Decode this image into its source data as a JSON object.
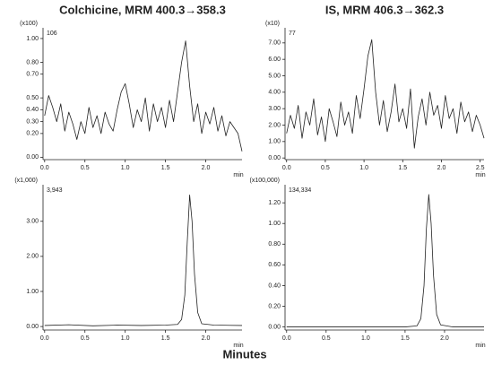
{
  "chart_data": [
    {
      "type": "line",
      "title": "Colchicine, MRM 400.3→358.3",
      "multiplier": "(x100)",
      "peak_label": "106",
      "x_unit": "min",
      "x": [
        0,
        0.05,
        0.1,
        0.15,
        0.2,
        0.25,
        0.3,
        0.35,
        0.4,
        0.45,
        0.5,
        0.55,
        0.6,
        0.65,
        0.7,
        0.75,
        0.8,
        0.85,
        0.9,
        0.95,
        1.0,
        1.05,
        1.1,
        1.15,
        1.2,
        1.25,
        1.3,
        1.35,
        1.4,
        1.45,
        1.5,
        1.55,
        1.6,
        1.65,
        1.7,
        1.75,
        1.8,
        1.85,
        1.9,
        1.95,
        2.0,
        2.05,
        2.1,
        2.15,
        2.2,
        2.25,
        2.3,
        2.35,
        2.4,
        2.45
      ],
      "values": [
        0.35,
        0.52,
        0.42,
        0.3,
        0.45,
        0.22,
        0.38,
        0.28,
        0.15,
        0.3,
        0.2,
        0.42,
        0.25,
        0.35,
        0.2,
        0.38,
        0.28,
        0.22,
        0.4,
        0.55,
        0.62,
        0.45,
        0.25,
        0.4,
        0.3,
        0.5,
        0.22,
        0.45,
        0.3,
        0.42,
        0.25,
        0.48,
        0.3,
        0.55,
        0.8,
        0.98,
        0.6,
        0.3,
        0.45,
        0.2,
        0.38,
        0.28,
        0.42,
        0.22,
        0.35,
        0.18,
        0.3,
        0.25,
        0.2,
        0.05
      ],
      "color": "#222222",
      "xlim": [
        -0.02,
        2.45
      ],
      "ylim": [
        -0.02,
        1.06
      ],
      "xticks": [
        {
          "value": 0,
          "label": "0.0"
        },
        0.5,
        {
          "value": 1,
          "label": "1.0"
        },
        1.5,
        {
          "value": 2,
          "label": "2.0"
        }
      ],
      "yticks": [
        {
          "value": 0,
          "label": "0.00"
        },
        {
          "value": 0.2,
          "label": "0.20"
        },
        {
          "value": 0.3,
          "label": "0.30"
        },
        {
          "value": 0.4,
          "label": "0.40"
        },
        {
          "value": 0.5,
          "label": "0.50"
        },
        {
          "value": 0.7,
          "label": "0.70"
        },
        {
          "value": 0.8,
          "label": "0.80"
        },
        {
          "value": 1,
          "label": "1.00"
        }
      ]
    },
    {
      "type": "line",
      "title": "IS, MRM 406.3→362.3",
      "multiplier": "(x10)",
      "peak_label": "77",
      "x_unit": "min",
      "x": [
        0,
        0.05,
        0.1,
        0.15,
        0.2,
        0.25,
        0.3,
        0.35,
        0.4,
        0.45,
        0.5,
        0.55,
        0.6,
        0.65,
        0.7,
        0.75,
        0.8,
        0.85,
        0.9,
        0.95,
        1.0,
        1.05,
        1.1,
        1.15,
        1.2,
        1.25,
        1.3,
        1.35,
        1.4,
        1.45,
        1.5,
        1.55,
        1.6,
        1.65,
        1.7,
        1.75,
        1.8,
        1.85,
        1.9,
        1.95,
        2.0,
        2.05,
        2.1,
        2.15,
        2.2,
        2.25,
        2.3,
        2.35,
        2.4,
        2.45,
        2.5,
        2.55
      ],
      "values": [
        1.5,
        2.6,
        1.8,
        3.2,
        1.2,
        2.8,
        2.0,
        3.6,
        1.4,
        2.5,
        1.0,
        3.0,
        2.2,
        1.3,
        3.4,
        2.0,
        2.8,
        1.5,
        3.8,
        2.4,
        4.2,
        6.2,
        7.2,
        4.0,
        2.0,
        3.5,
        1.6,
        2.8,
        4.5,
        2.2,
        3.0,
        1.8,
        4.2,
        0.6,
        2.5,
        3.6,
        2.0,
        4.0,
        2.6,
        3.2,
        1.8,
        3.8,
        2.4,
        3.0,
        1.5,
        3.4,
        2.2,
        2.8,
        1.6,
        2.6,
        2.0,
        1.2
      ],
      "color": "#222222",
      "xlim": [
        -0.02,
        2.55
      ],
      "ylim": [
        -0.1,
        7.7
      ],
      "xticks": [
        {
          "value": 0,
          "label": "0.0"
        },
        0.5,
        {
          "value": 1,
          "label": "1.0"
        },
        1.5,
        {
          "value": 2,
          "label": "2.0"
        },
        2.5
      ],
      "yticks": [
        {
          "value": 0,
          "label": "0.00"
        },
        {
          "value": 1,
          "label": "1.00"
        },
        {
          "value": 2,
          "label": "2.00"
        },
        {
          "value": 3,
          "label": "3.00"
        },
        {
          "value": 4,
          "label": "4.00"
        },
        {
          "value": 5,
          "label": "5.00"
        },
        {
          "value": 6,
          "label": "6.00"
        },
        {
          "value": 7,
          "label": "7.00"
        }
      ]
    },
    {
      "type": "line",
      "multiplier": "(x1,000)",
      "peak_label": "3,943",
      "x_unit": "min",
      "x": [
        0,
        0.3,
        0.6,
        0.9,
        1.2,
        1.5,
        1.65,
        1.7,
        1.74,
        1.77,
        1.8,
        1.83,
        1.86,
        1.9,
        1.95,
        2.1,
        2.45
      ],
      "values": [
        0.03,
        0.05,
        0.02,
        0.04,
        0.03,
        0.04,
        0.06,
        0.2,
        0.9,
        2.4,
        3.75,
        3.0,
        1.5,
        0.4,
        0.08,
        0.04,
        0.03
      ],
      "color": "#222222",
      "xlim": [
        -0.02,
        2.45
      ],
      "ylim": [
        -0.1,
        3.94
      ],
      "xticks": [
        {
          "value": 0,
          "label": "0.0"
        },
        0.5,
        {
          "value": 1,
          "label": "1.0"
        },
        1.5,
        {
          "value": 2,
          "label": "2.0"
        }
      ],
      "yticks": [
        {
          "value": 0,
          "label": "0.00"
        },
        {
          "value": 1,
          "label": "1.00"
        },
        {
          "value": 2,
          "label": "2.00"
        },
        {
          "value": 3,
          "label": "3.00"
        }
      ]
    },
    {
      "type": "line",
      "multiplier": "(x100,000)",
      "peak_label": "134,334",
      "x_unit": "min",
      "x": [
        0,
        0.3,
        0.6,
        0.9,
        1.2,
        1.5,
        1.65,
        1.7,
        1.74,
        1.77,
        1.8,
        1.83,
        1.86,
        1.9,
        1.95,
        2.1,
        2.5
      ],
      "values": [
        0,
        0,
        0,
        0,
        0,
        0,
        0.01,
        0.08,
        0.4,
        0.95,
        1.28,
        1.0,
        0.5,
        0.12,
        0.02,
        0,
        0
      ],
      "color": "#222222",
      "xlim": [
        -0.02,
        2.5
      ],
      "ylim": [
        -0.03,
        1.34
      ],
      "xticks": [
        {
          "value": 0,
          "label": "0.0"
        },
        0.5,
        {
          "value": 1,
          "label": "1.0"
        },
        1.5,
        {
          "value": 2,
          "label": "2.0"
        }
      ],
      "yticks": [
        {
          "value": 0,
          "label": "0.00"
        },
        {
          "value": 0.2,
          "label": "0.20"
        },
        {
          "value": 0.4,
          "label": "0.40"
        },
        {
          "value": 0.6,
          "label": "0.60"
        },
        {
          "value": 0.8,
          "label": "0.80"
        },
        {
          "value": 1,
          "label": "1.00"
        },
        {
          "value": 1.2,
          "label": "1.20"
        }
      ]
    }
  ],
  "x_axis_label": "Minutes"
}
